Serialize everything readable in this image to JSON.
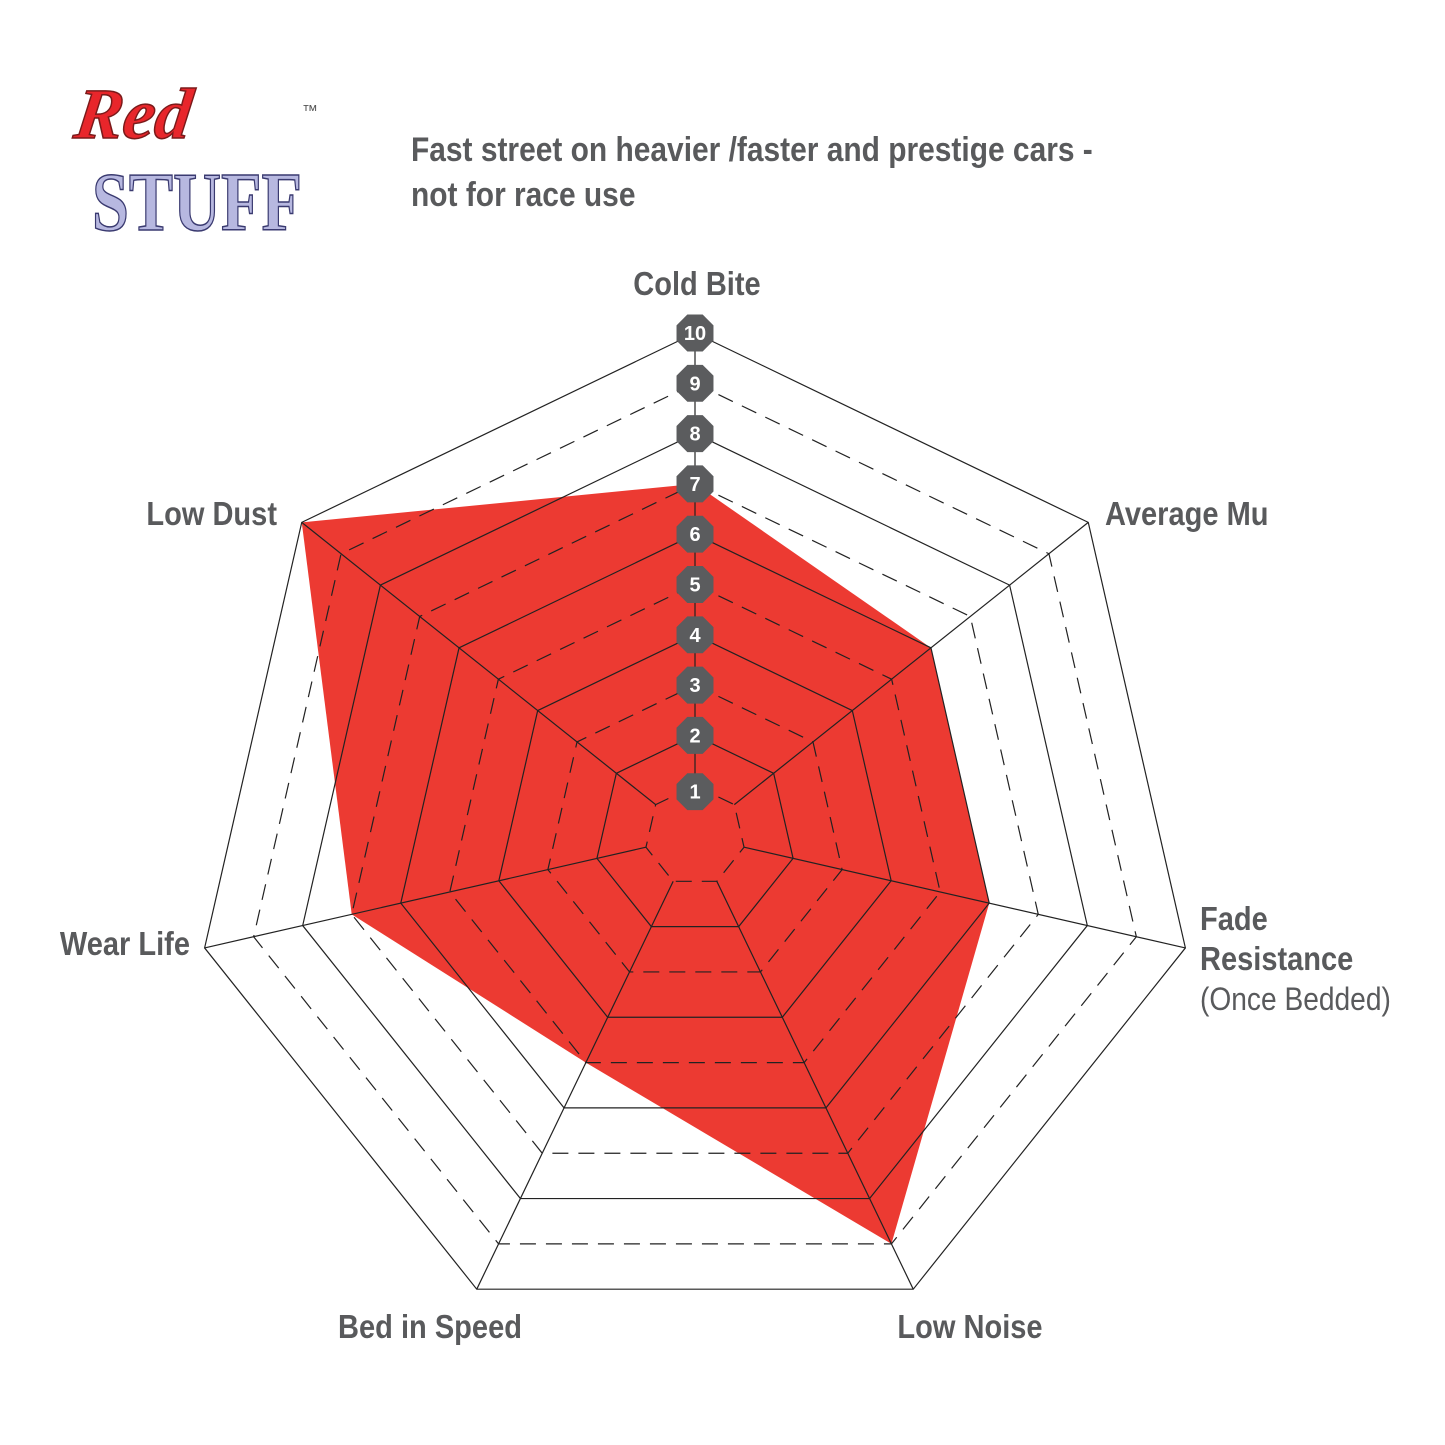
{
  "logo": {
    "line1": "Red",
    "line2": "STUFF",
    "tm": "™",
    "colors": {
      "red": "#e8262b",
      "lavender": "#b7b8e0"
    }
  },
  "title": {
    "line1": "Fast street on heavier /faster and prestige cars -",
    "line2": "not for race use"
  },
  "chart_data": {
    "type": "radar",
    "axes": [
      "Cold Bite",
      "Average Mu",
      "Fade Resistance (Once Bedded)",
      "Low Noise",
      "Bed in Speed",
      "Wear Life",
      "Low Dust"
    ],
    "axis_labels": [
      {
        "lines": [
          "Cold Bite"
        ]
      },
      {
        "lines": [
          "Average Mu"
        ]
      },
      {
        "lines": [
          "Fade",
          "Resistance"
        ],
        "sub": "(Once Bedded)"
      },
      {
        "lines": [
          "Low Noise"
        ]
      },
      {
        "lines": [
          "Bed in Speed"
        ]
      },
      {
        "lines": [
          "Wear Life"
        ]
      },
      {
        "lines": [
          "Low Dust"
        ]
      }
    ],
    "values": [
      7,
      6,
      6,
      9,
      5,
      7,
      10
    ],
    "range": [
      0,
      10
    ],
    "ticks": [
      "1",
      "2",
      "3",
      "4",
      "5",
      "6",
      "7",
      "8",
      "9",
      "10"
    ],
    "fill_color": "#ec3a32",
    "tick_marker_color": "#5b5c5e"
  }
}
